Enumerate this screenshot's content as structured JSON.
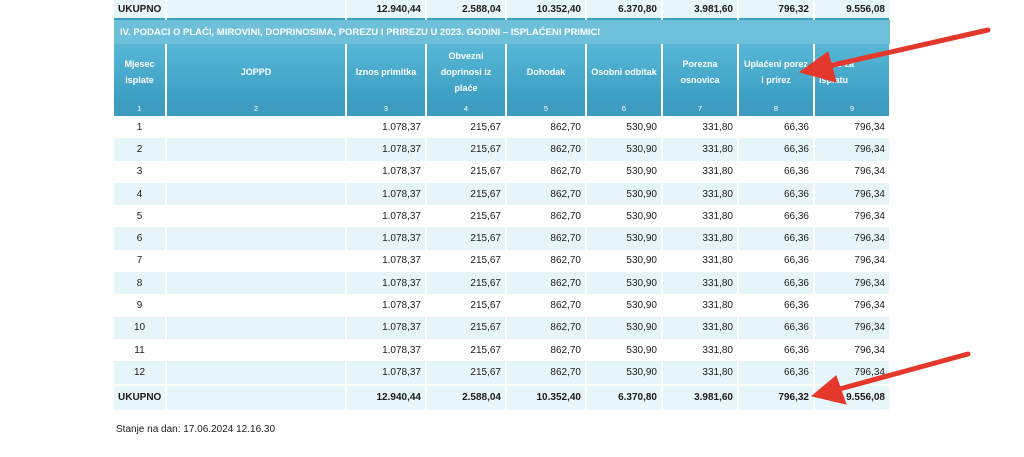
{
  "top_total": {
    "label": "UKUPNO",
    "values": [
      "12.940,44",
      "2.588,04",
      "10.352,40",
      "6.370,80",
      "3.981,60",
      "796,32",
      "9.556,08"
    ]
  },
  "section_title": "IV. PODACI O PLAĆI, MIROVINI, DOPRINOSIMA, POREZU I PRIREZU U 2023. GODINI – ISPLAĆENI PRIMICI",
  "columns": [
    {
      "label": "Mjesec isplate",
      "idx": "1"
    },
    {
      "label": "JOPPD",
      "idx": "2"
    },
    {
      "label": "Iznos primitka",
      "idx": "3"
    },
    {
      "label": "Obvezni doprinosi iz plaće",
      "idx": "4"
    },
    {
      "label": "Dohodak",
      "idx": "5"
    },
    {
      "label": "Osobni odbitak",
      "idx": "6"
    },
    {
      "label": "Porezna osnovica",
      "idx": "7"
    },
    {
      "label": "Uplaćeni porez i prirez",
      "idx": "8"
    },
    {
      "label": "Iznos za isplatu",
      "idx": "9"
    }
  ],
  "rows": [
    [
      "1",
      "",
      "1.078,37",
      "215,67",
      "862,70",
      "530,90",
      "331,80",
      "66,36",
      "796,34"
    ],
    [
      "2",
      "",
      "1.078,37",
      "215,67",
      "862,70",
      "530,90",
      "331,80",
      "66,36",
      "796,34"
    ],
    [
      "3",
      "",
      "1.078,37",
      "215,67",
      "862,70",
      "530,90",
      "331,80",
      "66,36",
      "796,34"
    ],
    [
      "4",
      "",
      "1.078,37",
      "215,67",
      "862,70",
      "530,90",
      "331,80",
      "66,36",
      "796,34"
    ],
    [
      "5",
      "",
      "1.078,37",
      "215,67",
      "862,70",
      "530,90",
      "331,80",
      "66,36",
      "796,34"
    ],
    [
      "6",
      "",
      "1.078,37",
      "215,67",
      "862,70",
      "530,90",
      "331,80",
      "66,36",
      "796,34"
    ],
    [
      "7",
      "",
      "1.078,37",
      "215,67",
      "862,70",
      "530,90",
      "331,80",
      "66,36",
      "796,34"
    ],
    [
      "8",
      "",
      "1.078,37",
      "215,67",
      "862,70",
      "530,90",
      "331,80",
      "66,36",
      "796,34"
    ],
    [
      "9",
      "",
      "1.078,37",
      "215,67",
      "862,70",
      "530,90",
      "331,80",
      "66,36",
      "796,34"
    ],
    [
      "10",
      "",
      "1.078,37",
      "215,67",
      "862,70",
      "530,90",
      "331,80",
      "66,36",
      "796,34"
    ],
    [
      "11",
      "",
      "1.078,37",
      "215,67",
      "862,70",
      "530,90",
      "331,80",
      "66,36",
      "796,34"
    ],
    [
      "12",
      "",
      "1.078,37",
      "215,67",
      "862,70",
      "530,90",
      "331,80",
      "66,36",
      "796,34"
    ]
  ],
  "bottom_total": {
    "label": "UKUPNO",
    "values": [
      "12.940,44",
      "2.588,04",
      "10.352,40",
      "6.370,80",
      "3.981,60",
      "796,32",
      "9.556,08"
    ]
  },
  "stanje": "Stanje na dan: 17.06.2024 12.16.30",
  "annotation_color": "#e3382b"
}
